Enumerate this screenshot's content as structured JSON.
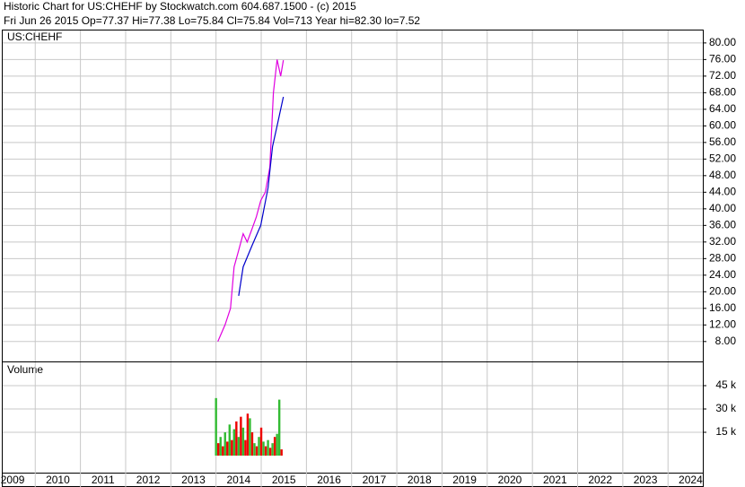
{
  "header": {
    "line1": "Historic Chart for US:CHEHF by Stockwatch.com 604.687.1500 - (c) 2015",
    "line2": "Fri Jun 26 2015  Op=77.37  Hi=77.38  Lo=75.84  Cl=75.84  Vol=713  Year hi=82.30  lo=7.52"
  },
  "chart_data": [
    {
      "type": "line",
      "title": "US:CHEHF",
      "xlim": [
        2009.28,
        2024.77
      ],
      "ylim": [
        3.2,
        83.0
      ],
      "grid": true,
      "yticks": [
        {
          "value": 8,
          "label": "8.00"
        },
        {
          "value": 12,
          "label": "12.00"
        },
        {
          "value": 16,
          "label": "16.00"
        },
        {
          "value": 20,
          "label": "20.00"
        },
        {
          "value": 24,
          "label": "24.00"
        },
        {
          "value": 28,
          "label": "28.00"
        },
        {
          "value": 32,
          "label": "32.00"
        },
        {
          "value": 36,
          "label": "36.00"
        },
        {
          "value": 40,
          "label": "40.00"
        },
        {
          "value": 44,
          "label": "44.00"
        },
        {
          "value": 48,
          "label": "48.00"
        },
        {
          "value": 52,
          "label": "52.00"
        },
        {
          "value": 56,
          "label": "56.00"
        },
        {
          "value": 60,
          "label": "60.00"
        },
        {
          "value": 64,
          "label": "64.00"
        },
        {
          "value": 68,
          "label": "68.00"
        },
        {
          "value": 72,
          "label": "72.00"
        },
        {
          "value": 76,
          "label": "76.00"
        },
        {
          "value": 80,
          "label": "80.00"
        }
      ],
      "series": [
        {
          "color": "#e000e0",
          "x": [
            2014.04,
            2014.2,
            2014.32,
            2014.4,
            2014.5,
            2014.6,
            2014.69,
            2014.79,
            2014.89,
            2014.99,
            2015.09,
            2015.19,
            2015.27,
            2015.35,
            2015.43,
            2015.49
          ],
          "values": [
            8,
            12,
            16,
            26,
            30,
            34,
            32,
            35,
            38,
            42,
            44,
            50,
            68,
            76,
            72,
            75.84
          ]
        },
        {
          "color": "#0000cc",
          "x": [
            2014.5,
            2014.6,
            2014.79,
            2014.99,
            2015.15,
            2015.25,
            2015.35,
            2015.43,
            2015.49
          ],
          "values": [
            19,
            26,
            31,
            36,
            45,
            55,
            60,
            64,
            67
          ]
        }
      ]
    },
    {
      "type": "bar",
      "title": "Volume",
      "xlim": [
        2009.28,
        2024.77
      ],
      "ylim": [
        0,
        60000
      ],
      "grid": true,
      "xticks": [
        2009,
        2010,
        2011,
        2012,
        2013,
        2014,
        2015,
        2016,
        2017,
        2018,
        2019,
        2020,
        2021,
        2022,
        2023,
        2024
      ],
      "yticks": [
        {
          "value": 15000,
          "label": "15 k"
        },
        {
          "value": 30000,
          "label": "30 k"
        },
        {
          "value": 45000,
          "label": "45 k"
        }
      ],
      "x": [
        2014.0,
        2014.05,
        2014.1,
        2014.15,
        2014.2,
        2014.25,
        2014.3,
        2014.35,
        2014.4,
        2014.45,
        2014.5,
        2014.55,
        2014.6,
        2014.65,
        2014.7,
        2014.75,
        2014.8,
        2014.85,
        2014.9,
        2014.95,
        2015.0,
        2015.05,
        2015.1,
        2015.15,
        2015.2,
        2015.25,
        2015.3,
        2015.35,
        2015.4,
        2015.45
      ],
      "values": [
        37000,
        8000,
        12000,
        6000,
        15000,
        9000,
        20000,
        10000,
        17000,
        22000,
        12000,
        25000,
        18000,
        10000,
        27000,
        24000,
        15000,
        8000,
        6000,
        12000,
        18000,
        9000,
        6000,
        10000,
        5000,
        8000,
        12000,
        14000,
        36000,
        4000
      ],
      "colors": [
        "#33bb33",
        "#ee0000",
        "#33bb33",
        "#ee0000",
        "#33bb33",
        "#ee0000",
        "#33bb33",
        "#ee0000",
        "#33bb33",
        "#ee0000",
        "#33bb33",
        "#ee0000",
        "#33bb33",
        "#ee0000",
        "#ee0000",
        "#33bb33",
        "#ee0000",
        "#33bb33",
        "#ee0000",
        "#33bb33",
        "#ee0000",
        "#33bb33",
        "#ee0000",
        "#33bb33",
        "#ee0000",
        "#33bb33",
        "#ee0000",
        "#33bb33",
        "#33bb33",
        "#ee0000"
      ]
    }
  ]
}
